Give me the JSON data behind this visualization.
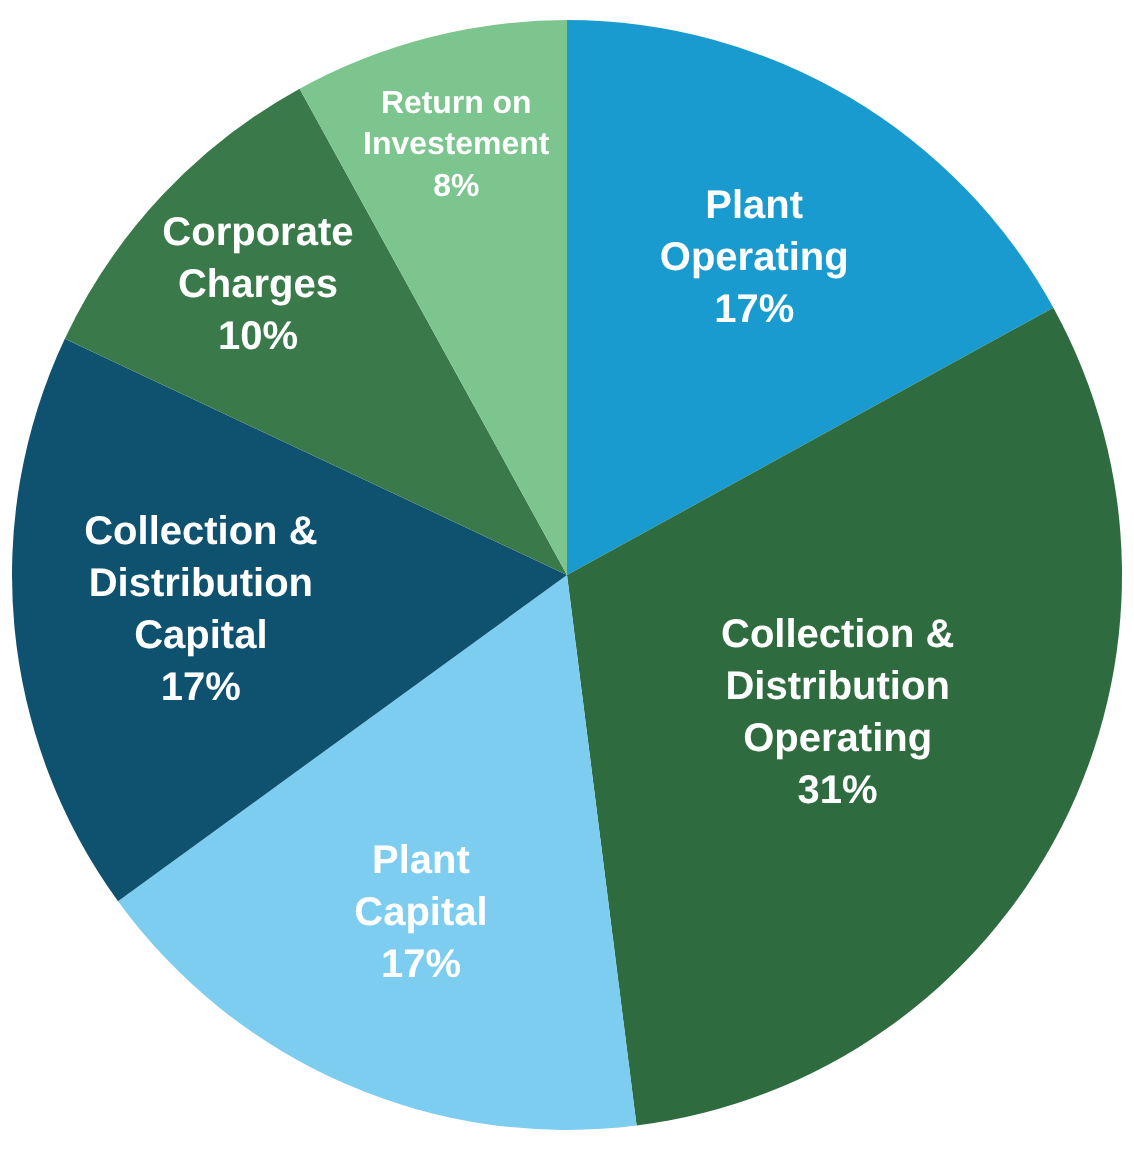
{
  "chart_data": {
    "type": "pie",
    "categories": [
      "Plant Operating",
      "Collection & Distribution Operating",
      "Plant Capital",
      "Collection & Distribution Capital",
      "Corporate Charges",
      "Return on Investement"
    ],
    "values": [
      17,
      31,
      17,
      17,
      10,
      8
    ],
    "value_labels": [
      "17%",
      "31%",
      "17%",
      "17%",
      "10%",
      "8%"
    ],
    "colors": [
      "#1a9bd0",
      "#2e6b3f",
      "#7dcdf0",
      "#0f5270",
      "#3a7a4a",
      "#7dc58f"
    ],
    "legend": false
  }
}
